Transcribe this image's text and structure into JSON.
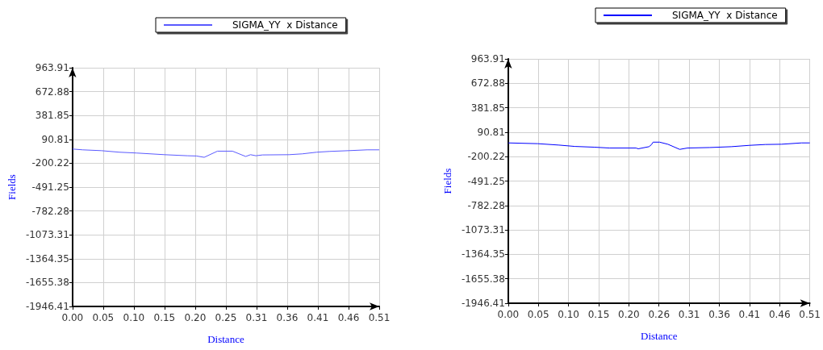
{
  "chart_data": [
    {
      "type": "line",
      "xlabel": "Distance",
      "ylabel": "Fields",
      "legend": "top",
      "grid": true,
      "marker": "none",
      "line_style": "solid",
      "xlim": [
        0,
        0.51
      ],
      "ylim": [
        -1946.41,
        963.91
      ],
      "xticks": [
        {
          "value": 0,
          "label": "0.00"
        },
        {
          "value": 0.051,
          "label": "0.05"
        },
        {
          "value": 0.102,
          "label": "0.10"
        },
        {
          "value": 0.153,
          "label": "0.15"
        },
        {
          "value": 0.204,
          "label": "0.20"
        },
        {
          "value": 0.255,
          "label": "0.25"
        },
        {
          "value": 0.306,
          "label": "0.31"
        },
        {
          "value": 0.357,
          "label": "0.36"
        },
        {
          "value": 0.408,
          "label": "0.41"
        },
        {
          "value": 0.459,
          "label": "0.46"
        },
        {
          "value": 0.51,
          "label": "0.51"
        }
      ],
      "yticks": [
        -1946.41,
        -1655.38,
        -1364.35,
        -1073.31,
        -782.28,
        -491.25,
        -200.22,
        90.81,
        381.85,
        672.88,
        963.91
      ],
      "series": [
        {
          "name": "SIGMA_YY  x Distance",
          "color": "#5a5aff",
          "x": [
            0,
            0.017,
            0.048,
            0.078,
            0.107,
            0.153,
            0.191,
            0.206,
            0.219,
            0.241,
            0.266,
            0.288,
            0.296,
            0.305,
            0.316,
            0.36,
            0.382,
            0.406,
            0.428,
            0.459,
            0.49,
            0.51
          ],
          "values": [
            -27,
            -37,
            -47,
            -66,
            -76,
            -96,
            -109,
            -112,
            -128,
            -53,
            -53,
            -118,
            -96,
            -109,
            -99,
            -96,
            -86,
            -66,
            -56,
            -47,
            -37,
            -37
          ]
        }
      ]
    },
    {
      "type": "line",
      "xlabel": "Distance",
      "ylabel": "Fields",
      "legend": "top",
      "grid": true,
      "marker": "none",
      "line_style": "solid",
      "xlim": [
        0,
        0.51
      ],
      "ylim": [
        -1946.41,
        963.91
      ],
      "xticks": [
        {
          "value": 0,
          "label": "0.00"
        },
        {
          "value": 0.051,
          "label": "0.05"
        },
        {
          "value": 0.102,
          "label": "0.10"
        },
        {
          "value": 0.153,
          "label": "0.15"
        },
        {
          "value": 0.204,
          "label": "0.20"
        },
        {
          "value": 0.255,
          "label": "0.26"
        },
        {
          "value": 0.306,
          "label": "0.31"
        },
        {
          "value": 0.357,
          "label": "0.36"
        },
        {
          "value": 0.408,
          "label": "0.41"
        },
        {
          "value": 0.459,
          "label": "0.46"
        },
        {
          "value": 0.51,
          "label": "0.51"
        }
      ],
      "yticks": [
        -1946.41,
        -1655.38,
        -1364.35,
        -1073.31,
        -782.28,
        -491.25,
        -200.22,
        90.81,
        381.85,
        672.88,
        963.91
      ],
      "series": [
        {
          "name": "SIGMA_YY  x Distance",
          "color": "#0000ff",
          "x": [
            0,
            0.05,
            0.086,
            0.113,
            0.146,
            0.171,
            0.216,
            0.22,
            0.238,
            0.242,
            0.245,
            0.256,
            0.27,
            0.29,
            0.303,
            0.341,
            0.377,
            0.408,
            0.435,
            0.462,
            0.496,
            0.51
          ],
          "values": [
            -37,
            -46,
            -63,
            -79,
            -88,
            -98,
            -98,
            -107,
            -82,
            -60,
            -28,
            -28,
            -53,
            -114,
            -98,
            -92,
            -82,
            -66,
            -56,
            -53,
            -37,
            -37
          ]
        }
      ]
    }
  ]
}
